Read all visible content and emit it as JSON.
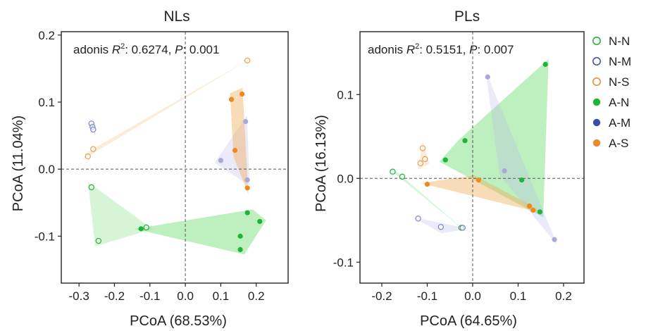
{
  "chart_data": [
    {
      "type": "scatter",
      "title": "NLs",
      "xlabel": "PCoA (68.53%)",
      "ylabel": "PCoA (11.04%)",
      "xlim": [
        -0.35,
        0.29
      ],
      "ylim": [
        -0.17,
        0.205
      ],
      "xticks": [
        -0.3,
        -0.2,
        -0.1,
        0.0,
        0.1,
        0.2
      ],
      "xtick_labels": [
        "-0.3",
        "-0.2",
        "-0.1",
        "0.0",
        "0.1",
        "0.2"
      ],
      "yticks": [
        -0.1,
        0.0,
        0.1,
        0.2
      ],
      "ytick_labels": [
        "-0.1",
        "0.0",
        "0.1",
        "0.2"
      ],
      "annotation": {
        "prefix": "adonis ",
        "r2_label": "R",
        "r2_sup": "2",
        "r2_value": ": 0.6274, ",
        "p_label": "P",
        "p_value": ": 0.001"
      },
      "series": [
        {
          "name": "N-N",
          "points": [
            [
              -0.265,
              -0.027
            ],
            [
              -0.245,
              -0.107
            ],
            [
              -0.11,
              -0.087
            ]
          ]
        },
        {
          "name": "N-M",
          "points": [
            [
              -0.265,
              0.068
            ],
            [
              -0.262,
              0.063
            ],
            [
              -0.26,
              0.059
            ]
          ]
        },
        {
          "name": "N-S",
          "points": [
            [
              -0.275,
              0.019
            ],
            [
              -0.26,
              0.03
            ],
            [
              0.175,
              0.162
            ]
          ]
        },
        {
          "name": "A-N",
          "points": [
            [
              -0.125,
              -0.089
            ],
            [
              0.175,
              -0.065
            ],
            [
              0.21,
              -0.078
            ],
            [
              0.155,
              -0.1
            ],
            [
              0.155,
              -0.12
            ]
          ]
        },
        {
          "name": "A-M",
          "points": [
            [
              0.1,
              0.013
            ],
            [
              0.17,
              0.071
            ],
            [
              0.175,
              -0.016
            ]
          ]
        },
        {
          "name": "A-S",
          "points": [
            [
              0.13,
              0.104
            ],
            [
              0.16,
              0.112
            ],
            [
              0.14,
              0.028
            ],
            [
              0.175,
              -0.028
            ]
          ]
        }
      ]
    },
    {
      "type": "scatter",
      "title": "PLs",
      "xlabel": "PCoA (64.65%)",
      "ylabel": "PCoA (16.13%)",
      "xlim": [
        -0.248,
        0.245
      ],
      "ylim": [
        -0.125,
        0.175
      ],
      "xticks": [
        -0.2,
        -0.1,
        0.0,
        0.1,
        0.2
      ],
      "xtick_labels": [
        "-0.2",
        "-0.1",
        "0.0",
        "0.1",
        "0.2"
      ],
      "yticks": [
        -0.1,
        0.0,
        0.1
      ],
      "ytick_labels": [
        "-0.1",
        "0.0",
        "0.1"
      ],
      "annotation": {
        "prefix": "adonis ",
        "r2_label": "R",
        "r2_sup": "2",
        "r2_value": ": 0.5151, ",
        "p_label": "P",
        "p_value": ": 0.007"
      },
      "series": [
        {
          "name": "N-N",
          "points": [
            [
              -0.176,
              0.008
            ],
            [
              -0.155,
              0.002
            ],
            [
              -0.025,
              -0.059
            ]
          ]
        },
        {
          "name": "N-M",
          "points": [
            [
              -0.12,
              -0.048
            ],
            [
              -0.07,
              -0.058
            ],
            [
              -0.022,
              -0.059
            ]
          ]
        },
        {
          "name": "N-S",
          "points": [
            [
              -0.11,
              0.036
            ],
            [
              -0.115,
              0.018
            ],
            [
              -0.105,
              0.023
            ]
          ]
        },
        {
          "name": "A-N",
          "points": [
            [
              -0.017,
              0.045
            ],
            [
              -0.06,
              0.022
            ],
            [
              0.108,
              -0.002
            ],
            [
              0.148,
              -0.04
            ],
            [
              0.16,
              0.136
            ]
          ]
        },
        {
          "name": "A-M",
          "points": [
            [
              0.033,
              0.121
            ],
            [
              0.07,
              0.009
            ],
            [
              0.18,
              -0.073
            ]
          ]
        },
        {
          "name": "A-S",
          "points": [
            [
              -0.1,
              -0.007
            ],
            [
              0.013,
              -0.002
            ],
            [
              0.125,
              -0.033
            ],
            [
              0.133,
              -0.038
            ]
          ]
        }
      ]
    }
  ],
  "legend": {
    "items": [
      {
        "label": "N-N",
        "color": "#1fb33a",
        "filled": false
      },
      {
        "label": "N-M",
        "color": "#3b4fa8",
        "filled": false
      },
      {
        "label": "N-S",
        "color": "#e88a2d",
        "filled": false
      },
      {
        "label": "A-N",
        "color": "#1fb33a",
        "filled": true
      },
      {
        "label": "A-M",
        "color": "#3b4fa8",
        "filled": true
      },
      {
        "label": "A-S",
        "color": "#e88a2d",
        "filled": true
      }
    ]
  },
  "colors": {
    "N-N": "#1fb33a",
    "N-M": "#7d86c8",
    "N-S": "#e3a055",
    "A-N": "#1fb33a",
    "A-M": "#a8a8dc",
    "A-S": "#ec8a1f",
    "hull_green": "#5cd65c",
    "hull_purple": "#b8b8ea",
    "hull_orange": "#f0b060"
  },
  "hulls": {
    "green": "#5cd65c",
    "purple": "#b8b8ea",
    "orange": "#f0b060"
  }
}
